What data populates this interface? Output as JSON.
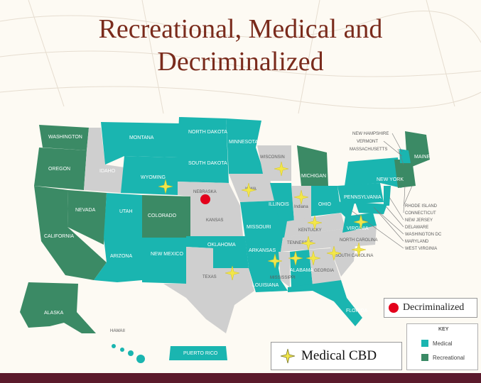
{
  "title": {
    "line1": "Recreational, Medical and",
    "line2": "Decriminalized"
  },
  "colors": {
    "medical": "#1ab5b0",
    "recreational": "#3b8a65",
    "none": "#cfcfcf",
    "decriminalized": "#e3001b",
    "cbd_star": "#f2e64a",
    "title": "#7a2b1c",
    "bottom_bar": "#5b1a2b"
  },
  "states": {
    "washington": "WASHINGTON",
    "oregon": "OREGON",
    "california": "CALIFORNIA",
    "nevada": "NEVADA",
    "idaho": "IDAHO",
    "montana": "MONTANA",
    "wyoming": "WYOMING",
    "utah": "UTAH",
    "colorado": "COLORADO",
    "arizona": "ARIZONA",
    "new_mexico": "NEW MEXICO",
    "north_dakota": "NORTH DAKOTA",
    "south_dakota": "SOUTH DAKOTA",
    "nebraska": "NEBRASKA",
    "kansas": "KANSAS",
    "oklahoma": "OKLAHOMA",
    "texas": "TEXAS",
    "minnesota": "MINNESOTA",
    "iowa": "IOWA",
    "missouri": "MISSOURI",
    "arkansas": "ARKANSAS",
    "louisiana": "LOUISIANA",
    "wisconsin": "WISCONSIN",
    "illinois": "ILLINOIS",
    "michigan": "MICHIGAN",
    "indiana": "Indiana",
    "ohio": "OHIO",
    "kentucky": "KENTUCKY",
    "tennessee": "TENNESSEE",
    "mississippi": "MISSISSIPPI",
    "alabama": "ALABAMA",
    "georgia": "GEORGIA",
    "florida": "FLORIDA",
    "south_carolina": "SOUTH CAROLINA",
    "north_carolina": "NORTH CAROLINA",
    "virginia": "VIRGINIA",
    "pennsylvania": "PENNSYLVANIA",
    "new_york": "NEW YORK",
    "maine": "MAINE",
    "alaska": "ALASKA",
    "hawaii": "HAWAII",
    "puerto_rico": "PUERTO RICO"
  },
  "northeast_labels": [
    "NEW HAMPSHIRE",
    "VERMONT",
    "MASSACHUSETTS"
  ],
  "east_labels": [
    "RHODE ISLAND",
    "CONNECTICUT",
    "NEW JERSEY",
    "DELAWARE",
    "WASHINGTON DC",
    "MARYLAND",
    "WEST VIRGINIA"
  ],
  "legend": {
    "decriminalized": "Decriminalized",
    "medical_cbd": "Medical CBD"
  },
  "key": {
    "title": "KEY",
    "medical": "Medical",
    "recreational": "Recreational"
  }
}
